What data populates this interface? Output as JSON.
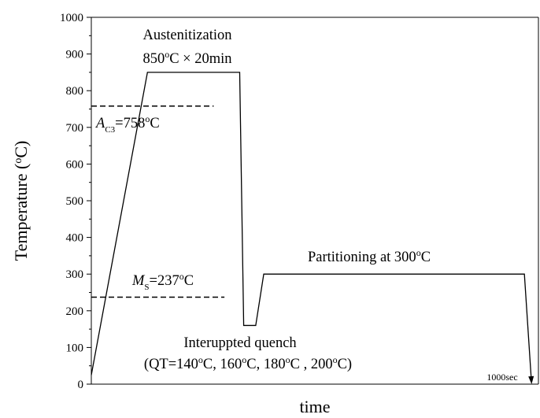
{
  "chart_data": {
    "type": "line",
    "ylabel": "Temperature (oC)",
    "xlabel": "time",
    "ylim": [
      0,
      1000
    ],
    "y_ticks": [
      0,
      100,
      200,
      300,
      400,
      500,
      600,
      700,
      800,
      900,
      1000
    ],
    "grid": false,
    "series": [
      {
        "x": [
          0,
          14,
          37,
          38,
          41,
          43,
          108,
          109.8
        ],
        "y": [
          25,
          850,
          850,
          160,
          160,
          300,
          300,
          0
        ]
      }
    ],
    "reference_lines": [
      {
        "y": 758,
        "style": "dashed"
      },
      {
        "y": 237,
        "style": "dashed"
      }
    ],
    "annotations": {
      "austenitization": {
        "title": "Austenitization",
        "condition": "850oC × 20min"
      },
      "ac3": {
        "symbol": "A",
        "subscript": "C3",
        "value": "=758oC"
      },
      "ms": {
        "symbol": "M",
        "subscript": "S",
        "value": "=237oC"
      },
      "partitioning": "Partitioning at 300oC",
      "quench": {
        "title": "Interuppted quench",
        "conditions": "(QT=140oC, 160oC, 180oC , 200oC)"
      },
      "end_time": "1000sec"
    }
  }
}
